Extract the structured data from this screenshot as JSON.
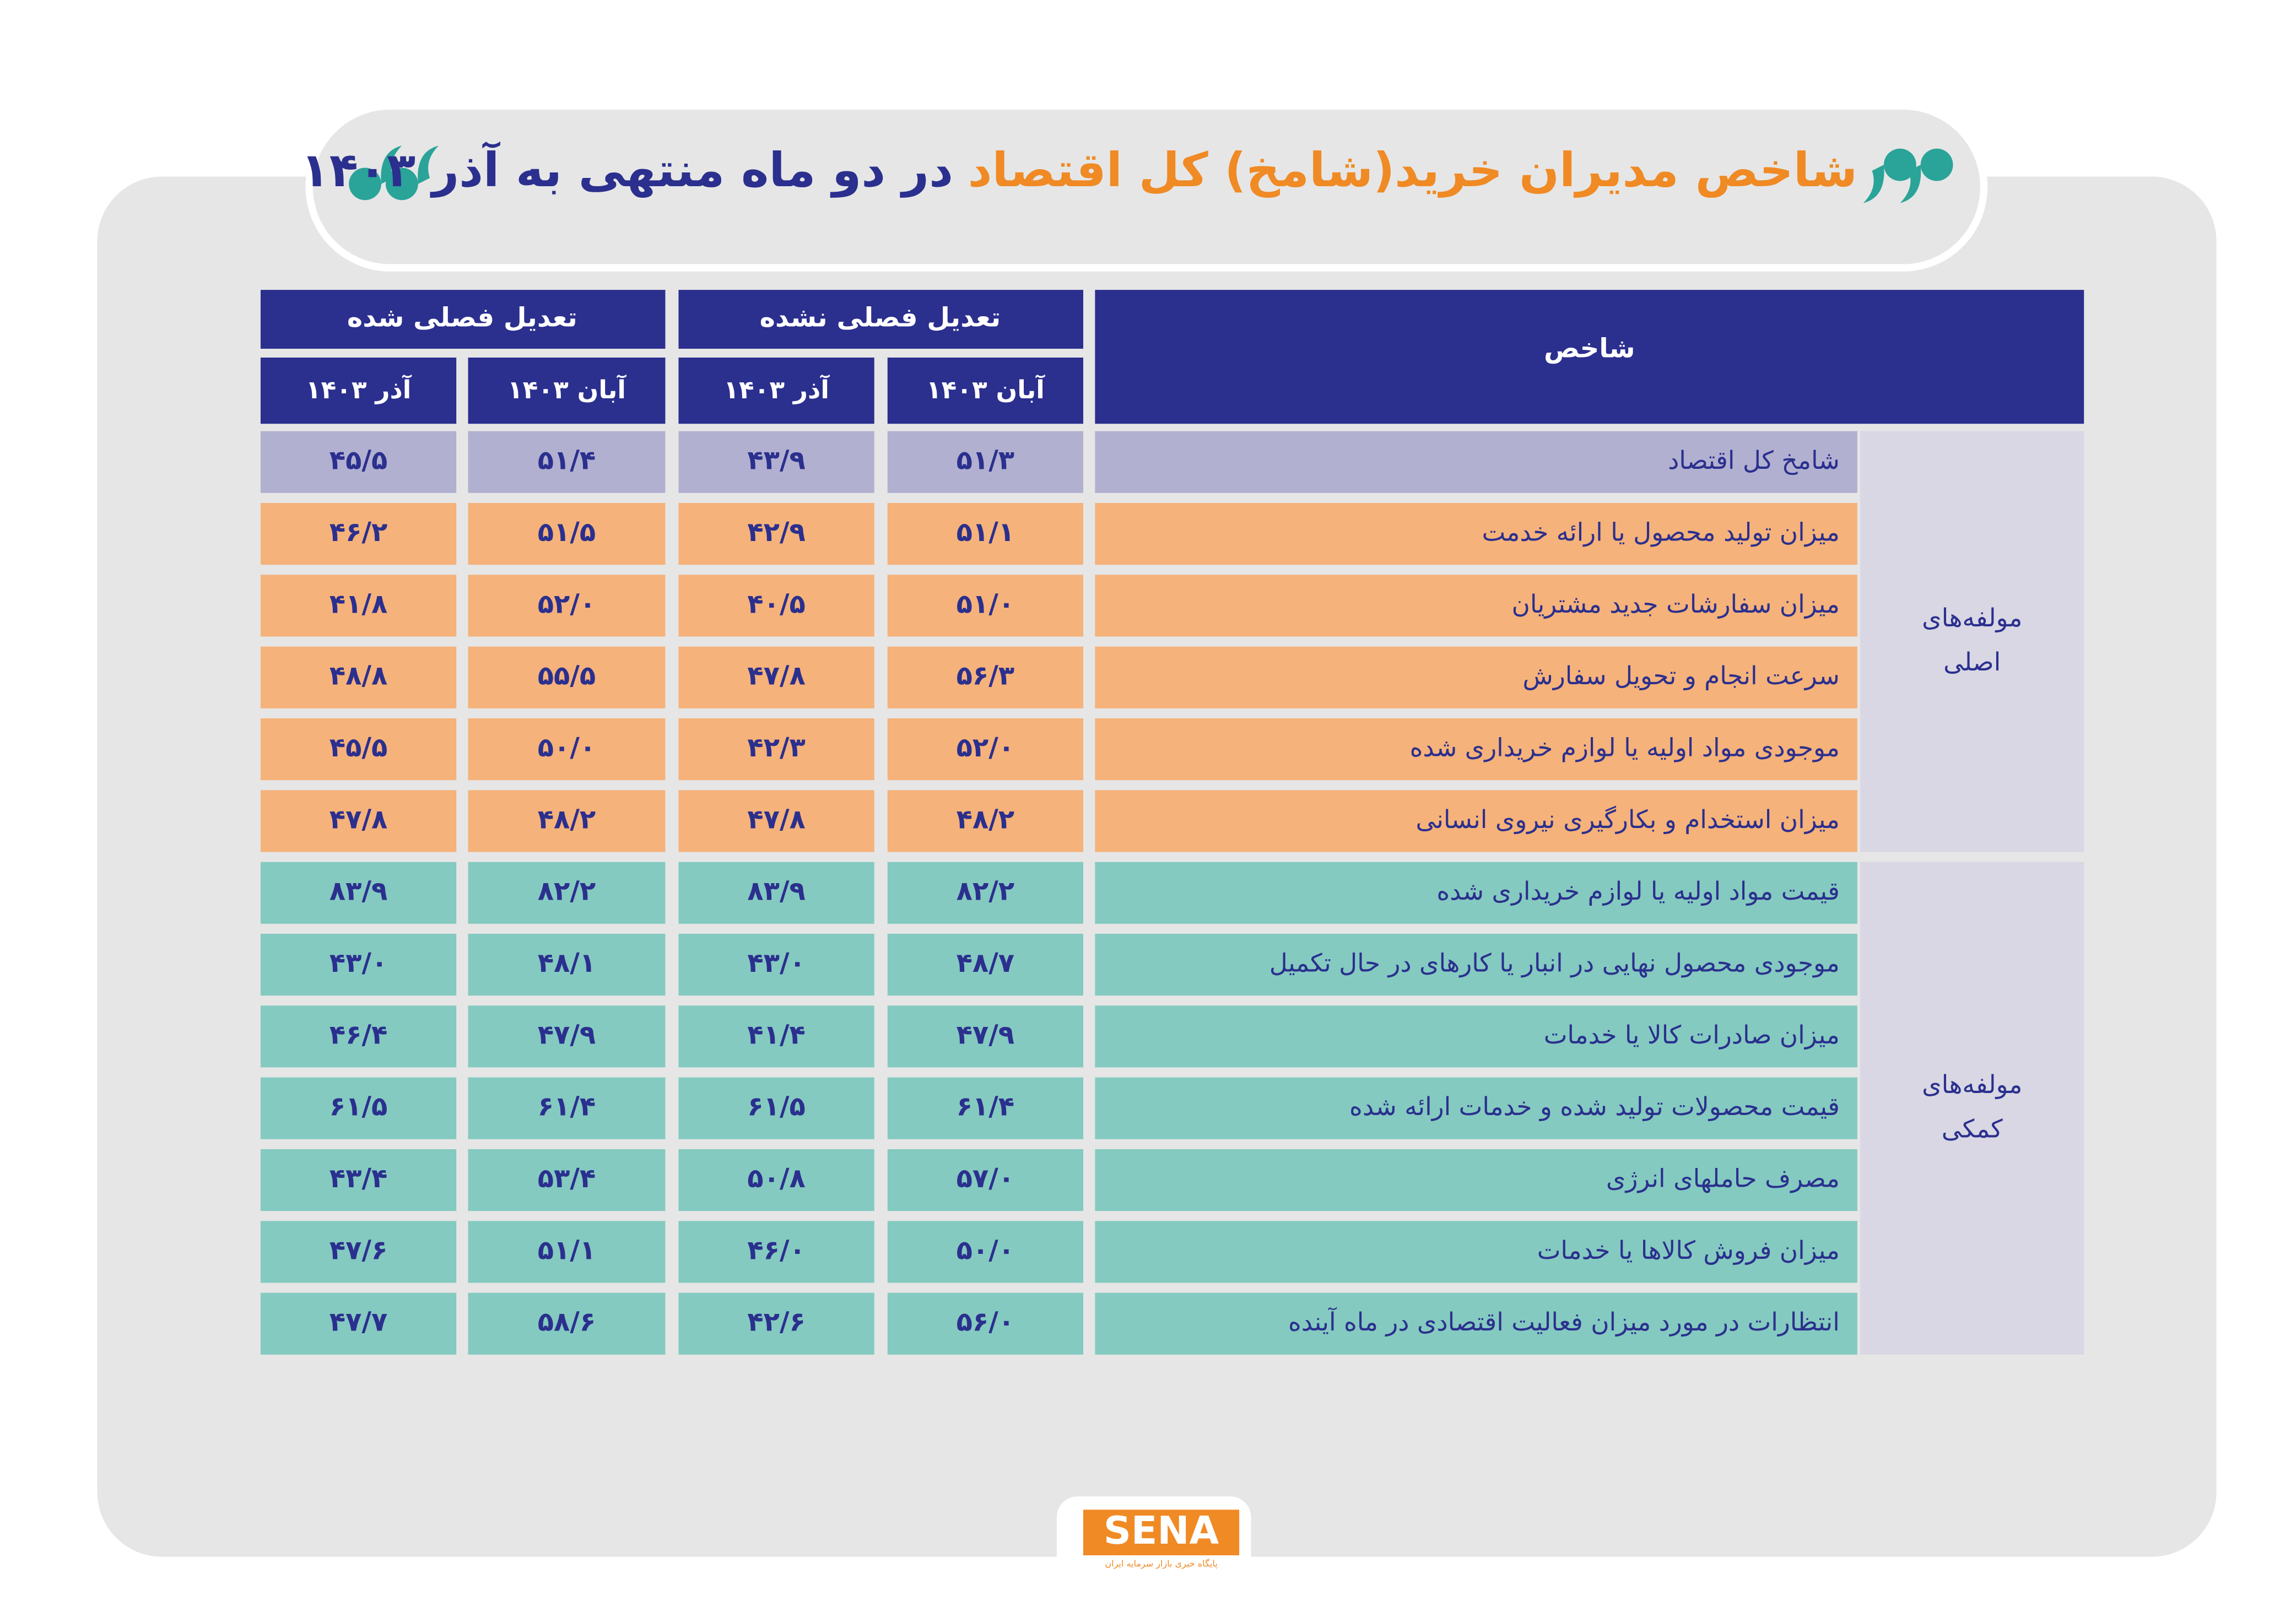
{
  "header": {
    "title_highlight": "شاخص مدیران خرید(شامخ) کل اقتصاد",
    "title_rest": "در دو ماه منتهی به آذر ۱۴۰۳"
  },
  "table": {
    "indicator_header": "شاخص",
    "unadjusted_header": "تعدیل فصلی نشده",
    "adjusted_header": "تعدیل فصلی شده",
    "subheaders": [
      "آبان ۱۴۰۳",
      "آذر ۱۴۰۳",
      "آبان ۱۴۰۳",
      "آذر ۱۴۰۳"
    ],
    "groups": [
      {
        "label_lines": [
          "مولفه‌های",
          "اصلی"
        ],
        "rows": [
          {
            "name": "شامخ کل اقتصاد",
            "values": [
              "۵۱/۳",
              "۴۳/۹",
              "۵۱/۴",
              "۴۵/۵"
            ]
          },
          {
            "name": "میزان تولید محصول یا ارائه خدمت",
            "values": [
              "۵۱/۱",
              "۴۲/۹",
              "۵۱/۵",
              "۴۶/۲"
            ]
          },
          {
            "name": "میزان سفارشات جدید مشتریان",
            "values": [
              "۵۱/۰",
              "۴۰/۵",
              "۵۲/۰",
              "۴۱/۸"
            ]
          },
          {
            "name": "سرعت انجام و تحویل سفارش",
            "values": [
              "۵۶/۳",
              "۴۷/۸",
              "۵۵/۵",
              "۴۸/۸"
            ]
          },
          {
            "name": "موجودی مواد اولیه یا لوازم خریداری شده",
            "values": [
              "۵۲/۰",
              "۴۲/۳",
              "۵۰/۰",
              "۴۵/۵"
            ]
          },
          {
            "name": "میزان استخدام و بکارگیری نیروی انسانی",
            "values": [
              "۴۸/۲",
              "۴۷/۸",
              "۴۸/۲",
              "۴۷/۸"
            ]
          }
        ]
      },
      {
        "label_lines": [
          "مولفه‌های",
          "کمکی"
        ],
        "rows": [
          {
            "name": "قیمت مواد اولیه یا لوازم خریداری شده",
            "values": [
              "۸۲/۲",
              "۸۳/۹",
              "۸۲/۲",
              "۸۳/۹"
            ]
          },
          {
            "name": "موجودی محصول نهایی در انبار یا کارهای در حال تکمیل",
            "values": [
              "۴۸/۷",
              "۴۳/۰",
              "۴۸/۱",
              "۴۳/۰"
            ]
          },
          {
            "name": "میزان صادرات کالا یا خدمات",
            "values": [
              "۴۷/۹",
              "۴۱/۴",
              "۴۷/۹",
              "۴۶/۴"
            ]
          },
          {
            "name": "قیمت محصولات تولید شده و خدمات ارائه شده",
            "values": [
              "۶۱/۴",
              "۶۱/۵",
              "۶۱/۴",
              "۶۱/۵"
            ]
          },
          {
            "name": "مصرف حاملهای انرژی",
            "values": [
              "۵۷/۰",
              "۵۰/۸",
              "۵۳/۴",
              "۴۳/۴"
            ]
          },
          {
            "name": "میزان فروش کالاها یا خدمات",
            "values": [
              "۵۰/۰",
              "۴۶/۰",
              "۵۱/۱",
              "۴۷/۶"
            ]
          },
          {
            "name": "انتظارات در مورد میزان فعالیت اقتصادی در ماه آینده",
            "values": [
              "۵۶/۰",
              "۴۲/۶",
              "۵۸/۶",
              "۴۷/۷"
            ]
          }
        ]
      }
    ]
  },
  "footer": {
    "logo": "SENA",
    "tagline": "پایگاه خبری بازار سرمایه ایران"
  }
}
